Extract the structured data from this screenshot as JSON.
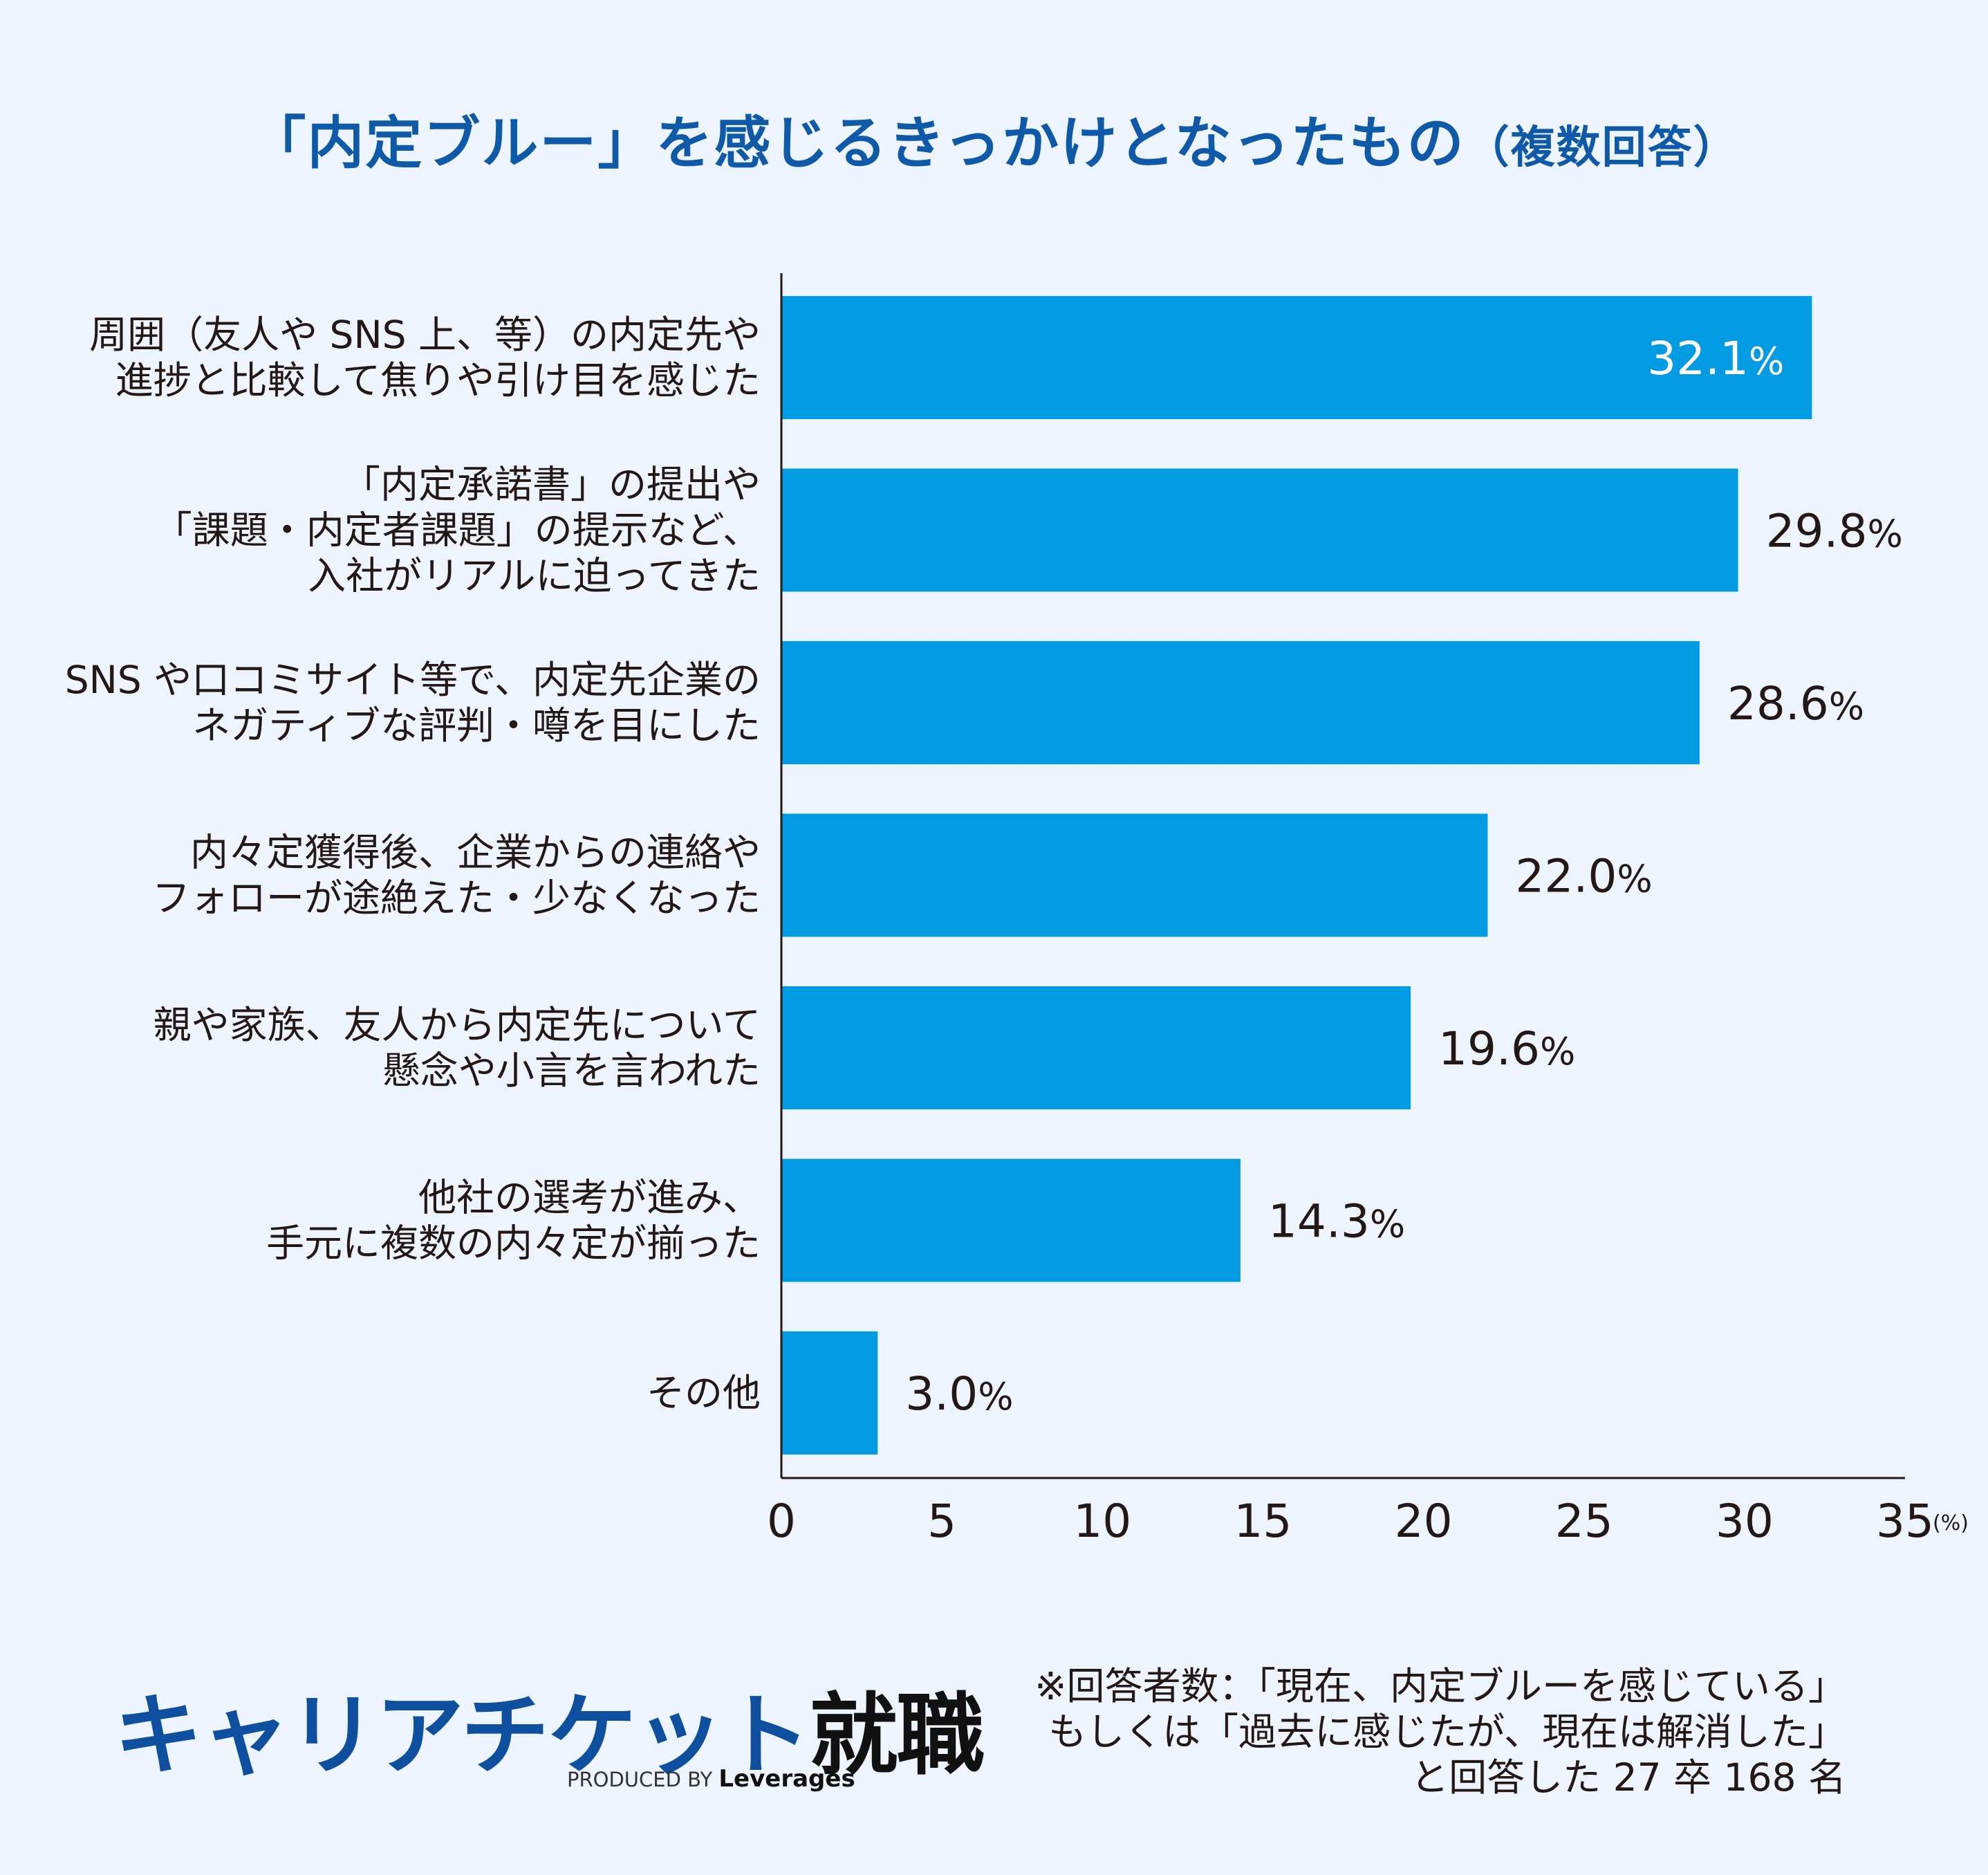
{
  "header": {
    "title": "「内定ブルー」を感じるきっかけとなったもの",
    "subtitle": "（複数回答）"
  },
  "chart_data": {
    "type": "bar",
    "orientation": "horizontal",
    "title": "「内定ブルー」を感じるきっかけとなったもの（複数回答）",
    "categories": [
      [
        "周囲（友人や SNS 上、等）の内定先や",
        "進捗と比較して焦りや引け目を感じた"
      ],
      [
        "「内定承諾書」の提出や",
        "「課題・内定者課題」の提示など、",
        "入社がリアルに迫ってきた"
      ],
      [
        "SNS や口コミサイト等で、内定先企業の",
        "ネガティブな評判・噂を目にした"
      ],
      [
        "内々定獲得後、企業からの連絡や",
        "フォローが途絶えた・少なくなった"
      ],
      [
        "親や家族、友人から内定先について",
        "懸念や小言を言われた"
      ],
      [
        "他社の選考が進み、",
        "手元に複数の内々定が揃った"
      ],
      [
        "その他"
      ]
    ],
    "values": [
      32.1,
      29.8,
      28.6,
      22.0,
      19.6,
      14.3,
      3.0
    ],
    "value_labels": [
      "32.1",
      "29.8",
      "28.6",
      "22.0",
      "19.6",
      "14.3",
      "3.0"
    ],
    "value_suffix": "%",
    "xlim": [
      0,
      35
    ],
    "xticks": [
      "0",
      "5",
      "10",
      "15",
      "20",
      "25",
      "30",
      "35"
    ],
    "xunit": "(%)",
    "grid": false,
    "bar_color": "#009be2"
  },
  "footer": {
    "logo_text": "キャリアチケット",
    "logo_kanji": "就職",
    "produced_by": "PRODUCED BY",
    "produced_brand": "Leverages",
    "note_lines": [
      "※回答者数：「現在、内定ブルーを感じている」",
      "もしくは「過去に感じたが、現在は解消した」",
      "と回答した 27 卒 168 名"
    ]
  }
}
